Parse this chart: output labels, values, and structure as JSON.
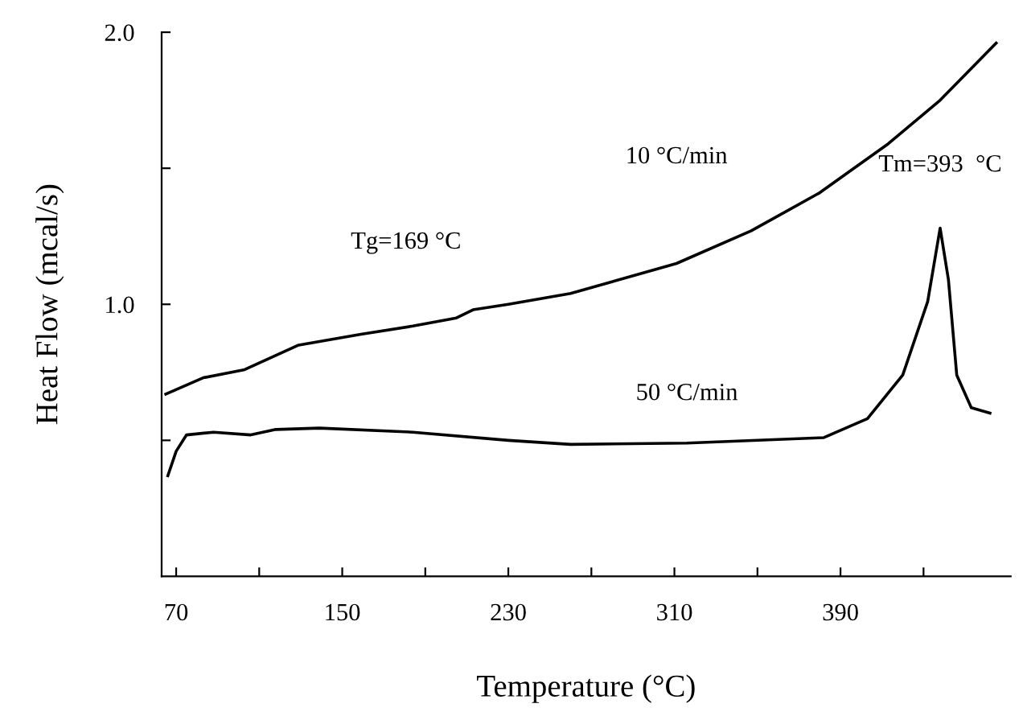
{
  "chart_data": {
    "type": "line",
    "xlabel": "Temperature (°C)",
    "ylabel": "Heat Flow (mcal/s)",
    "xlim": [
      63,
      472
    ],
    "ylim": [
      0,
      2.0
    ],
    "xticks": [
      70,
      {
        "value": 110,
        "label": null
      },
      150,
      {
        "value": 190,
        "label": null
      },
      230,
      {
        "value": 270,
        "label": null
      },
      310,
      {
        "value": 350,
        "label": null
      },
      390,
      {
        "value": 430,
        "label": null
      }
    ],
    "yticks": [
      {
        "value": 0.5,
        "label": null
      },
      {
        "value": 1,
        "label": "1.0"
      },
      {
        "value": 1.5,
        "label": null
      },
      {
        "value": 2,
        "label": "2.0"
      }
    ],
    "grid": false,
    "legend": false,
    "marker": "none",
    "line_style": "solid",
    "series": [
      {
        "name": "10 °C/min",
        "color": "#000000",
        "x": [
          65,
          83,
          103,
          129,
          159,
          184,
          205,
          213,
          230,
          260,
          311,
          347,
          380,
          413,
          438,
          465
        ],
        "values": [
          0.67,
          0.73,
          0.76,
          0.85,
          0.89,
          0.92,
          0.95,
          0.98,
          1.0,
          1.04,
          1.15,
          1.27,
          1.41,
          1.59,
          1.75,
          1.96
        ]
      },
      {
        "name": "50 °C/min",
        "color": "#000000",
        "x": [
          66,
          70,
          75,
          88,
          106,
          118,
          139,
          184,
          230,
          260,
          316,
          382,
          403,
          420,
          432,
          438,
          442,
          446,
          453,
          462
        ],
        "values": [
          0.37,
          0.46,
          0.52,
          0.53,
          0.52,
          0.54,
          0.545,
          0.53,
          0.5,
          0.485,
          0.49,
          0.51,
          0.58,
          0.74,
          1.01,
          1.28,
          1.09,
          0.74,
          0.62,
          0.6
        ]
      }
    ],
    "annotations": [
      {
        "text": "Tg=169 °C",
        "x": 213,
        "y": 0.98
      },
      {
        "text": "Tm=393  °C",
        "x": 438,
        "y": 1.28
      }
    ]
  }
}
